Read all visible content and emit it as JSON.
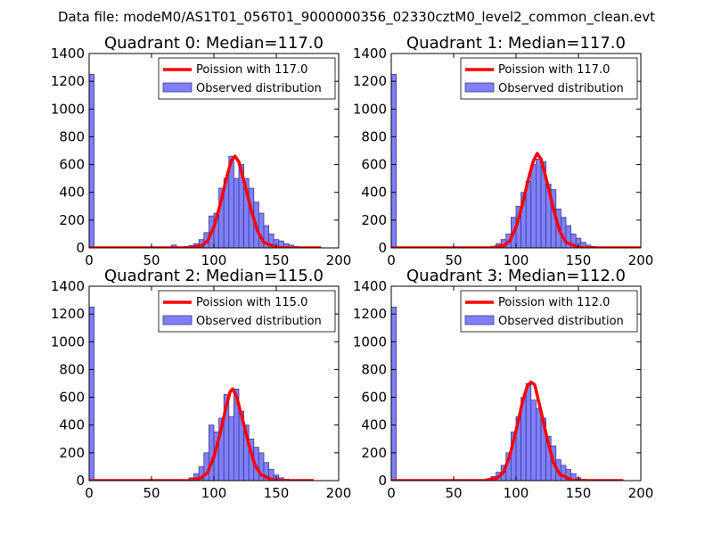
{
  "figure": {
    "suptitle": "Data file: modeM0/AS1T01_056T01_9000000356_02330cztM0_level2_common_clean.evt",
    "bar_color": "#8080ff",
    "bar_edge_color": "#3a3a8a",
    "line_color": "#ff0000",
    "legend_bar_label": "Observed distribution"
  },
  "chart_data": [
    {
      "type": "bar",
      "title": "Quadrant 0: Median=117.0",
      "legend_line_label": "Poission with 117.0",
      "median": 117.0,
      "xlim": [
        0,
        200
      ],
      "ylim": [
        0,
        1400
      ],
      "xticks": [
        0,
        50,
        100,
        150,
        200
      ],
      "yticks": [
        0,
        200,
        400,
        600,
        800,
        1000,
        1200,
        1400
      ],
      "hist": {
        "bins": [
          [
            0,
            4,
            1250
          ],
          [
            66,
            70,
            20
          ],
          [
            76,
            80,
            10
          ],
          [
            80,
            84,
            18
          ],
          [
            84,
            88,
            30
          ],
          [
            88,
            92,
            60
          ],
          [
            92,
            96,
            110
          ],
          [
            96,
            100,
            230
          ],
          [
            100,
            104,
            250
          ],
          [
            104,
            108,
            430
          ],
          [
            108,
            112,
            500
          ],
          [
            112,
            116,
            660
          ],
          [
            116,
            120,
            500
          ],
          [
            120,
            124,
            600
          ],
          [
            124,
            128,
            500
          ],
          [
            128,
            132,
            430
          ],
          [
            132,
            136,
            330
          ],
          [
            136,
            140,
            250
          ],
          [
            140,
            144,
            160
          ],
          [
            144,
            148,
            100
          ],
          [
            148,
            152,
            60
          ],
          [
            152,
            156,
            50
          ],
          [
            156,
            160,
            30
          ],
          [
            160,
            164,
            20
          ],
          [
            164,
            168,
            10
          ]
        ]
      },
      "poisson_curve": {
        "x": [
          0,
          70,
          80,
          90,
          95,
          100,
          105,
          110,
          114,
          117,
          120,
          125,
          130,
          135,
          140,
          150,
          160,
          170,
          186
        ],
        "y": [
          0,
          0,
          1,
          15,
          50,
          150,
          310,
          500,
          630,
          660,
          620,
          450,
          270,
          120,
          40,
          3,
          0,
          0,
          0
        ]
      }
    },
    {
      "type": "bar",
      "title": "Quadrant 1: Median=117.0",
      "legend_line_label": "Poission with 117.0",
      "median": 117.0,
      "xlim": [
        0,
        200
      ],
      "ylim": [
        0,
        1400
      ],
      "xticks": [
        0,
        50,
        100,
        150,
        200
      ],
      "yticks": [
        0,
        200,
        400,
        600,
        800,
        1000,
        1200,
        1400
      ],
      "hist": {
        "bins": [
          [
            0,
            4,
            1250
          ],
          [
            80,
            84,
            10
          ],
          [
            84,
            88,
            30
          ],
          [
            88,
            92,
            60
          ],
          [
            92,
            96,
            100
          ],
          [
            96,
            100,
            220
          ],
          [
            100,
            104,
            300
          ],
          [
            104,
            108,
            400
          ],
          [
            108,
            112,
            480
          ],
          [
            112,
            116,
            600
          ],
          [
            116,
            120,
            640
          ],
          [
            120,
            124,
            620
          ],
          [
            124,
            128,
            460
          ],
          [
            128,
            132,
            420
          ],
          [
            132,
            136,
            280
          ],
          [
            136,
            140,
            220
          ],
          [
            140,
            144,
            160
          ],
          [
            144,
            148,
            100
          ],
          [
            148,
            152,
            70
          ],
          [
            152,
            156,
            40
          ],
          [
            156,
            160,
            20
          ],
          [
            160,
            164,
            10
          ]
        ]
      },
      "poisson_curve": {
        "x": [
          0,
          70,
          80,
          90,
          95,
          100,
          105,
          110,
          114,
          117,
          120,
          125,
          130,
          135,
          140,
          150,
          160,
          170,
          200
        ],
        "y": [
          0,
          0,
          1,
          15,
          50,
          150,
          310,
          500,
          630,
          680,
          640,
          470,
          280,
          120,
          40,
          3,
          0,
          0,
          0
        ]
      }
    },
    {
      "type": "bar",
      "title": "Quadrant 2: Median=115.0",
      "legend_line_label": "Poission with 115.0",
      "median": 115.0,
      "xlim": [
        0,
        200
      ],
      "ylim": [
        0,
        1400
      ],
      "xticks": [
        0,
        50,
        100,
        150,
        200
      ],
      "yticks": [
        0,
        200,
        400,
        600,
        800,
        1000,
        1200,
        1400
      ],
      "hist": {
        "bins": [
          [
            0,
            4,
            1250
          ],
          [
            80,
            84,
            20
          ],
          [
            84,
            88,
            50
          ],
          [
            88,
            92,
            100
          ],
          [
            92,
            96,
            200
          ],
          [
            96,
            100,
            400
          ],
          [
            100,
            104,
            350
          ],
          [
            104,
            108,
            450
          ],
          [
            108,
            112,
            620
          ],
          [
            112,
            116,
            460
          ],
          [
            116,
            120,
            660
          ],
          [
            120,
            124,
            500
          ],
          [
            124,
            128,
            400
          ],
          [
            128,
            132,
            300
          ],
          [
            132,
            136,
            240
          ],
          [
            136,
            140,
            200
          ],
          [
            140,
            144,
            130
          ],
          [
            144,
            148,
            80
          ],
          [
            148,
            152,
            40
          ],
          [
            152,
            156,
            20
          ],
          [
            156,
            160,
            10
          ]
        ]
      },
      "poisson_curve": {
        "x": [
          0,
          70,
          80,
          90,
          95,
          100,
          105,
          110,
          113,
          115,
          118,
          123,
          128,
          133,
          138,
          148,
          160,
          170,
          180
        ],
        "y": [
          0,
          0,
          1,
          20,
          60,
          170,
          340,
          540,
          640,
          660,
          610,
          440,
          260,
          110,
          40,
          3,
          0,
          0,
          0
        ]
      }
    },
    {
      "type": "bar",
      "title": "Quadrant 3: Median=112.0",
      "legend_line_label": "Poission with 112.0",
      "median": 112.0,
      "xlim": [
        0,
        200
      ],
      "ylim": [
        0,
        1400
      ],
      "xticks": [
        0,
        50,
        100,
        150,
        200
      ],
      "yticks": [
        0,
        200,
        400,
        600,
        800,
        1000,
        1200,
        1400
      ],
      "hist": {
        "bins": [
          [
            0,
            4,
            1250
          ],
          [
            76,
            80,
            10
          ],
          [
            80,
            84,
            30
          ],
          [
            84,
            88,
            60
          ],
          [
            88,
            92,
            110
          ],
          [
            92,
            96,
            200
          ],
          [
            96,
            100,
            350
          ],
          [
            100,
            104,
            460
          ],
          [
            104,
            108,
            600
          ],
          [
            108,
            112,
            700
          ],
          [
            112,
            116,
            580
          ],
          [
            116,
            120,
            520
          ],
          [
            120,
            124,
            450
          ],
          [
            124,
            128,
            320
          ],
          [
            128,
            132,
            250
          ],
          [
            132,
            136,
            150
          ],
          [
            136,
            140,
            110
          ],
          [
            140,
            144,
            80
          ],
          [
            144,
            148,
            50
          ],
          [
            148,
            152,
            20
          ],
          [
            152,
            156,
            10
          ]
        ]
      },
      "poisson_curve": {
        "x": [
          0,
          65,
          75,
          85,
          90,
          95,
          100,
          105,
          109,
          112,
          115,
          120,
          125,
          130,
          135,
          145,
          155,
          165,
          186
        ],
        "y": [
          0,
          0,
          1,
          20,
          60,
          180,
          360,
          560,
          680,
          710,
          690,
          500,
          300,
          130,
          45,
          3,
          0,
          0,
          0
        ]
      }
    }
  ]
}
